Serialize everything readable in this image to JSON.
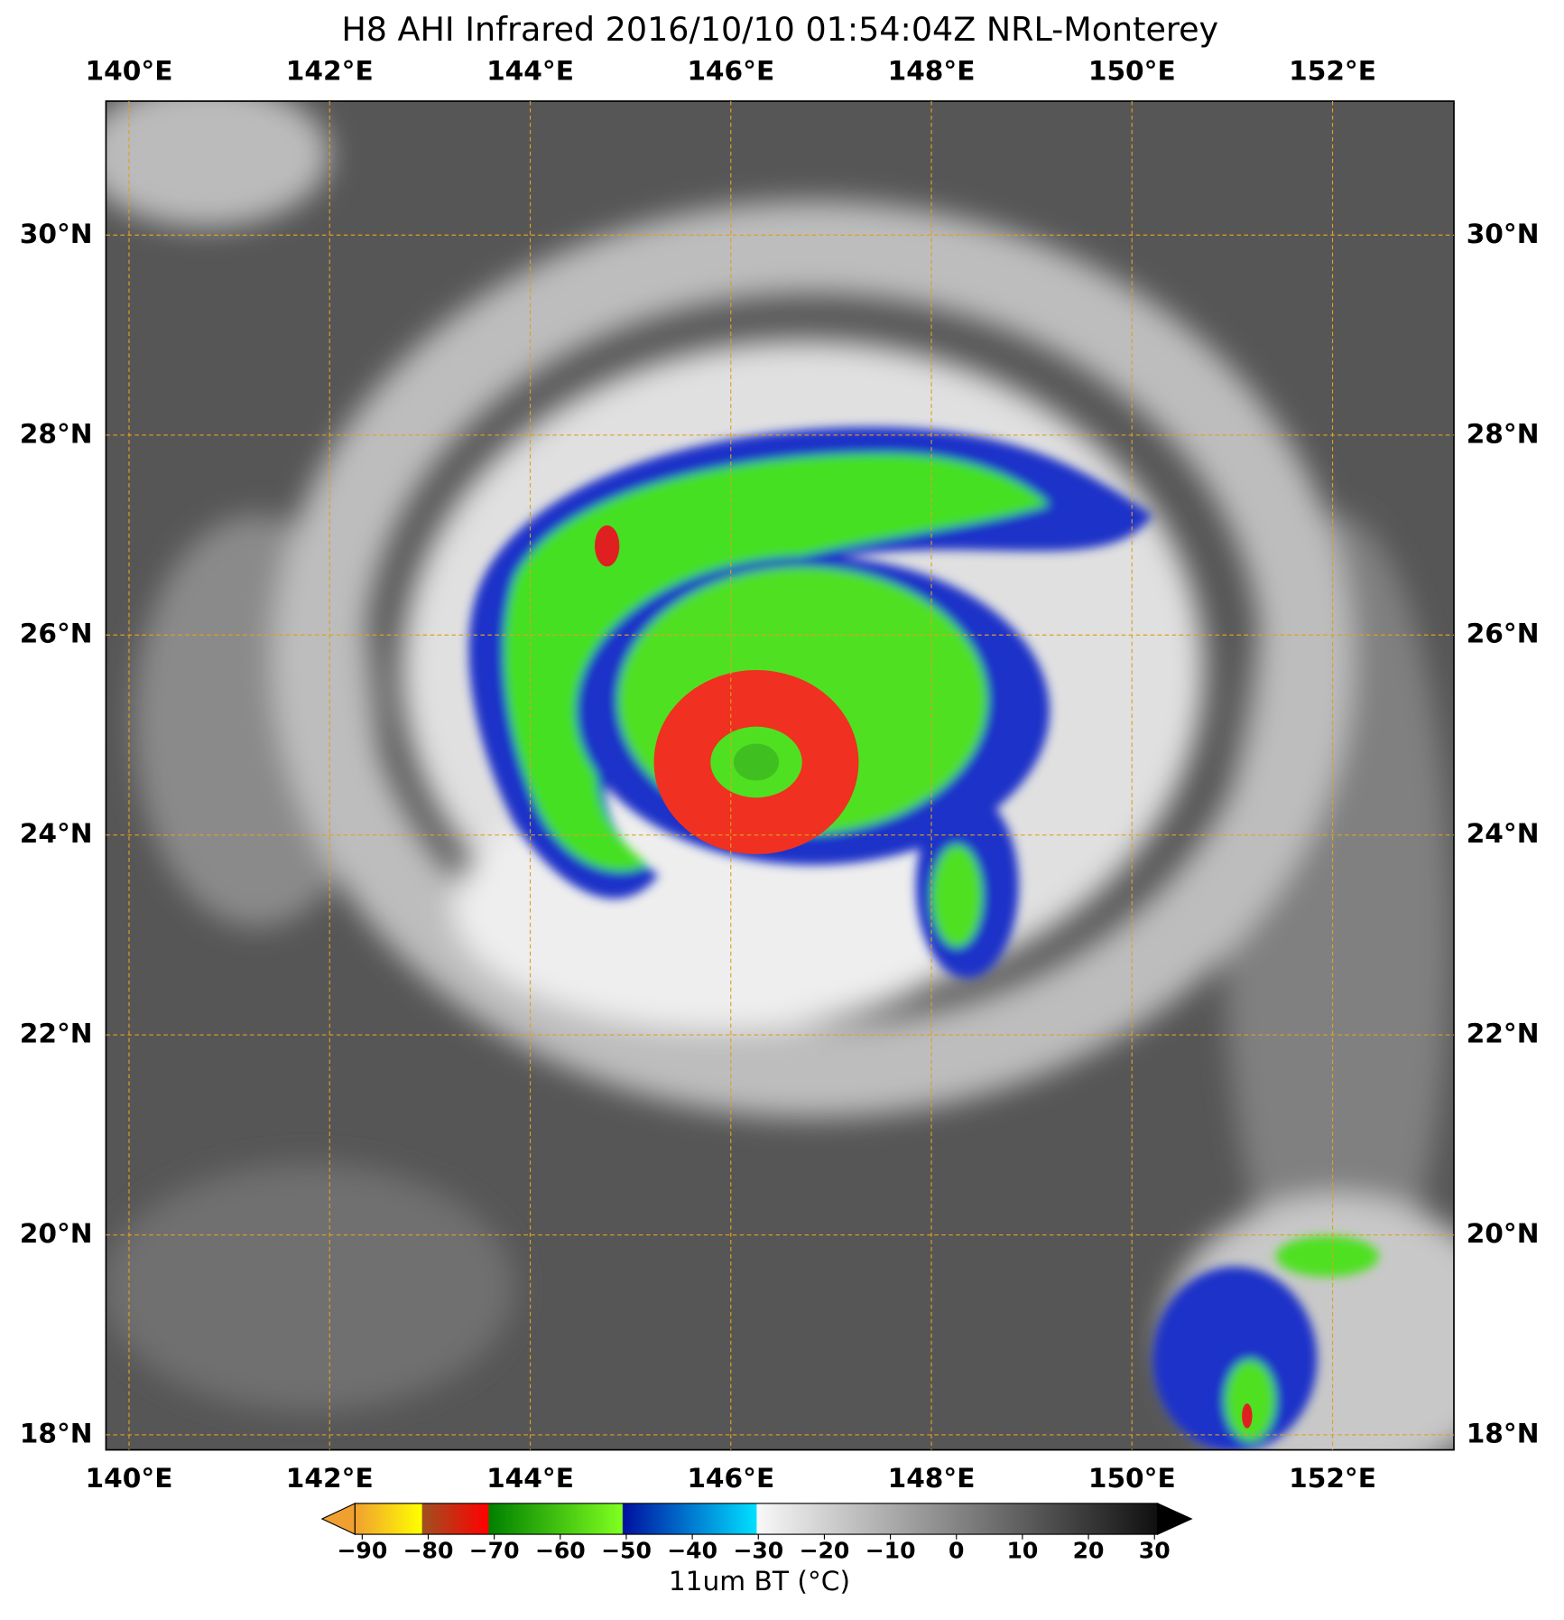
{
  "map": {
    "title": "H8 AHI Infrared 2016/10/10 01:54:04Z NRL-Monterey",
    "xlim": [
      139.77,
      153.21
    ],
    "ylim": [
      17.85,
      31.34
    ],
    "xticks": [
      {
        "value": 140,
        "label": "140°E"
      },
      {
        "value": 142,
        "label": "142°E"
      },
      {
        "value": 144,
        "label": "144°E"
      },
      {
        "value": 146,
        "label": "146°E"
      },
      {
        "value": 148,
        "label": "148°E"
      },
      {
        "value": 150,
        "label": "150°E"
      },
      {
        "value": 152,
        "label": "152°E"
      }
    ],
    "yticks": [
      {
        "value": 18,
        "label": "18°N"
      },
      {
        "value": 20,
        "label": "20°N"
      },
      {
        "value": 22,
        "label": "22°N"
      },
      {
        "value": 24,
        "label": "24°N"
      },
      {
        "value": 26,
        "label": "26°N"
      },
      {
        "value": 28,
        "label": "28°N"
      },
      {
        "value": 30,
        "label": "30°N"
      }
    ],
    "grid": true,
    "colorbar": {
      "label": "11um BT (°C)",
      "lim": [
        -90,
        30
      ],
      "ticks": [
        {
          "value": -90,
          "label": "−90"
        },
        {
          "value": -80,
          "label": "−80"
        },
        {
          "value": -70,
          "label": "−70"
        },
        {
          "value": -60,
          "label": "−60"
        },
        {
          "value": -50,
          "label": "−50"
        },
        {
          "value": -40,
          "label": "−40"
        },
        {
          "value": -30,
          "label": "−30"
        },
        {
          "value": -20,
          "label": "−20"
        },
        {
          "value": -10,
          "label": "−10"
        },
        0,
        10,
        20,
        30
      ]
    }
  }
}
